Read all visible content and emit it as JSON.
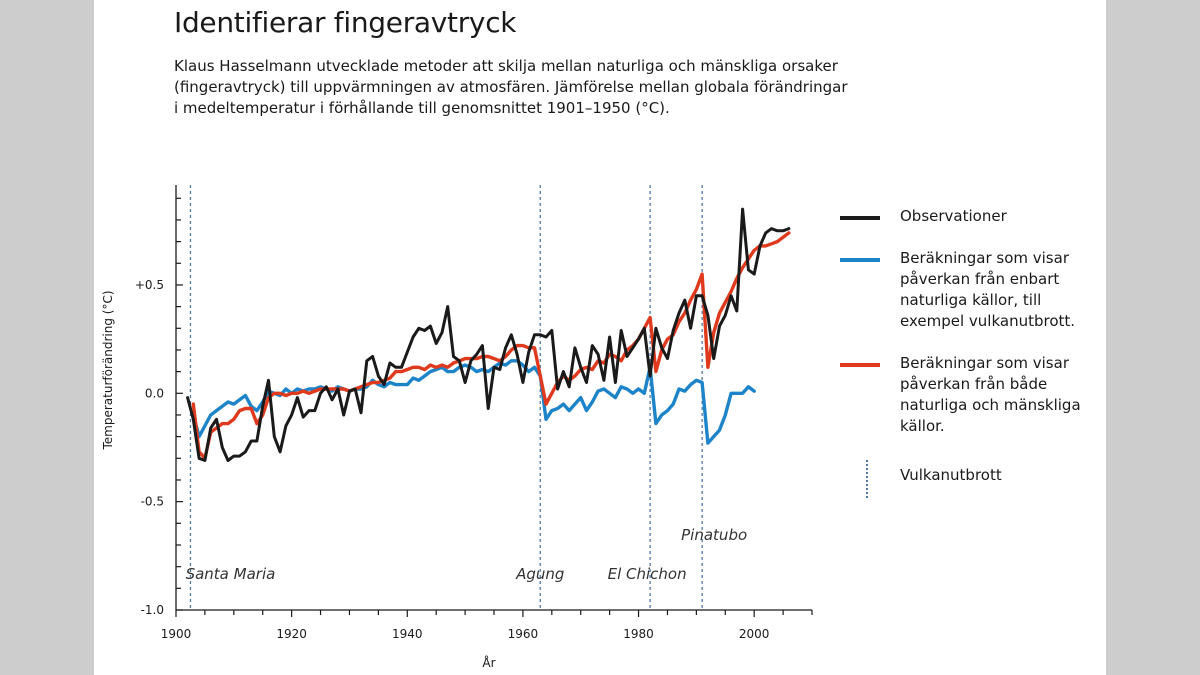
{
  "title": "Identifierar fingeravtryck",
  "subtitle": "Klaus Hasselmann utvecklade metoder att skilja mellan naturliga och mänskliga orsaker (fingeravtryck) till uppvärmningen av atmosfären. Jämförelse mellan globala förändringar i medeltemperatur i förhållande till genomsnittet 1901–1950 (°C).",
  "legend": {
    "observed": "Observationer",
    "natural": "Beräkningar som visar påverkan från enbart naturliga källor, till exempel vulkanutbrott.",
    "combined": "Beräkningar som visar påverkan från både naturliga och mänskliga källor.",
    "volcano": "Vulkanutbrott"
  },
  "chart_data": {
    "type": "line",
    "xlabel": "År",
    "ylabel": "Temperaturförändring (°C)",
    "xlim": [
      1900,
      2010
    ],
    "ylim": [
      -1.0,
      1.0
    ],
    "x_ticks": [
      1900,
      1920,
      1940,
      1960,
      1980,
      2000
    ],
    "x_tick_labels": [
      "1900",
      "1920",
      "1940",
      "1960",
      "1980",
      "2000"
    ],
    "y_ticks": [
      0.5,
      0.0,
      -0.5,
      -1.0
    ],
    "y_tick_labels": [
      "+0.5",
      "0.0",
      "-0.5",
      "-1.0"
    ],
    "legend_position": "right",
    "colors": {
      "observed": "#1a1a1a",
      "natural": "#1d84c9",
      "combined": "#e03a1e",
      "volcano": "#4f79a8"
    },
    "volcanoes": [
      {
        "name": "Santa Maria",
        "year": 1902.5
      },
      {
        "name": "Agung",
        "year": 1963
      },
      {
        "name": "El Chichon",
        "year": 1982
      },
      {
        "name": "Pinatubo",
        "year": 1991
      }
    ],
    "series": [
      {
        "name": "Observationer",
        "key": "observed",
        "x": [
          1902,
          1903,
          1904,
          1905,
          1906,
          1907,
          1908,
          1909,
          1910,
          1911,
          1912,
          1913,
          1914,
          1915,
          1916,
          1917,
          1918,
          1919,
          1920,
          1921,
          1922,
          1923,
          1924,
          1925,
          1926,
          1927,
          1928,
          1929,
          1930,
          1931,
          1932,
          1933,
          1934,
          1935,
          1936,
          1937,
          1938,
          1939,
          1940,
          1941,
          1942,
          1943,
          1944,
          1945,
          1946,
          1947,
          1948,
          1949,
          1950,
          1951,
          1952,
          1953,
          1954,
          1955,
          1956,
          1957,
          1958,
          1959,
          1960,
          1961,
          1962,
          1963,
          1964,
          1965,
          1966,
          1967,
          1968,
          1969,
          1970,
          1971,
          1972,
          1973,
          1974,
          1975,
          1976,
          1977,
          1978,
          1979,
          1980,
          1981,
          1982,
          1983,
          1984,
          1985,
          1986,
          1987,
          1988,
          1989,
          1990,
          1991,
          1992,
          1993,
          1994,
          1995,
          1996,
          1997,
          1998,
          1999,
          2000,
          2001,
          2002,
          2003,
          2004,
          2005,
          2006
        ],
        "values": [
          -0.02,
          -0.12,
          -0.3,
          -0.31,
          -0.16,
          -0.12,
          -0.25,
          -0.31,
          -0.29,
          -0.29,
          -0.27,
          -0.22,
          -0.22,
          -0.06,
          0.06,
          -0.2,
          -0.27,
          -0.15,
          -0.1,
          -0.02,
          -0.11,
          -0.08,
          -0.08,
          0.0,
          0.03,
          -0.03,
          0.02,
          -0.1,
          0.01,
          0.02,
          -0.09,
          0.15,
          0.17,
          0.08,
          0.04,
          0.14,
          0.12,
          0.12,
          0.19,
          0.26,
          0.3,
          0.29,
          0.31,
          0.23,
          0.28,
          0.4,
          0.17,
          0.15,
          0.05,
          0.15,
          0.18,
          0.22,
          -0.07,
          0.12,
          0.11,
          0.21,
          0.27,
          0.18,
          0.05,
          0.19,
          0.27,
          0.27,
          0.26,
          0.29,
          0.02,
          0.1,
          0.03,
          0.21,
          0.12,
          0.05,
          0.22,
          0.18,
          0.06,
          0.26,
          0.05,
          0.29,
          0.17,
          0.21,
          0.25,
          0.3,
          0.08,
          0.3,
          0.21,
          0.16,
          0.29,
          0.37,
          0.43,
          0.3,
          0.45,
          0.45,
          0.36,
          0.16,
          0.31,
          0.36,
          0.45,
          0.38,
          0.85,
          0.57,
          0.55,
          0.68,
          0.74,
          0.76,
          0.75,
          0.75,
          0.76
        ]
      },
      {
        "name": "Beräkningar som visar påverkan från enbart naturliga källor",
        "key": "natural",
        "x": [
          1903,
          1904,
          1905,
          1906,
          1907,
          1908,
          1909,
          1910,
          1911,
          1912,
          1913,
          1914,
          1915,
          1916,
          1917,
          1918,
          1919,
          1920,
          1921,
          1922,
          1923,
          1924,
          1925,
          1926,
          1927,
          1928,
          1929,
          1930,
          1931,
          1932,
          1933,
          1934,
          1935,
          1936,
          1937,
          1938,
          1939,
          1940,
          1941,
          1942,
          1943,
          1944,
          1945,
          1946,
          1947,
          1948,
          1949,
          1950,
          1951,
          1952,
          1953,
          1954,
          1955,
          1956,
          1957,
          1958,
          1959,
          1960,
          1961,
          1962,
          1963,
          1964,
          1965,
          1966,
          1967,
          1968,
          1969,
          1970,
          1971,
          1972,
          1973,
          1974,
          1975,
          1976,
          1977,
          1978,
          1979,
          1980,
          1981,
          1982,
          1983,
          1984,
          1985,
          1986,
          1987,
          1988,
          1989,
          1990,
          1991,
          1992,
          1993,
          1994,
          1995,
          1996,
          1997,
          1998,
          1999,
          2000
        ],
        "values": [
          -0.1,
          -0.2,
          -0.15,
          -0.1,
          -0.08,
          -0.06,
          -0.04,
          -0.05,
          -0.03,
          -0.01,
          -0.06,
          -0.08,
          -0.04,
          0.01,
          0.0,
          -0.01,
          0.02,
          0.0,
          0.02,
          0.01,
          0.02,
          0.02,
          0.03,
          0.02,
          0.01,
          0.03,
          0.02,
          0.01,
          0.02,
          0.02,
          0.03,
          0.06,
          0.04,
          0.03,
          0.05,
          0.04,
          0.04,
          0.04,
          0.07,
          0.06,
          0.08,
          0.1,
          0.11,
          0.12,
          0.1,
          0.1,
          0.12,
          0.13,
          0.12,
          0.1,
          0.11,
          0.1,
          0.12,
          0.14,
          0.13,
          0.15,
          0.15,
          0.13,
          0.1,
          0.12,
          0.08,
          -0.12,
          -0.08,
          -0.07,
          -0.05,
          -0.08,
          -0.05,
          -0.02,
          -0.08,
          -0.04,
          0.01,
          0.02,
          0.0,
          -0.02,
          0.03,
          0.02,
          0.0,
          0.02,
          0.0,
          0.12,
          -0.14,
          -0.1,
          -0.08,
          -0.05,
          0.02,
          0.01,
          0.04,
          0.06,
          0.05,
          -0.23,
          -0.2,
          -0.17,
          -0.1,
          0.0,
          0.0,
          0.0,
          0.03,
          0.01
        ]
      },
      {
        "name": "Beräkningar som visar påverkan från både naturliga och mänskliga källor",
        "key": "combined",
        "x": [
          1903,
          1904,
          1905,
          1906,
          1907,
          1908,
          1909,
          1910,
          1911,
          1912,
          1913,
          1914,
          1915,
          1916,
          1917,
          1918,
          1919,
          1920,
          1921,
          1922,
          1923,
          1924,
          1925,
          1926,
          1927,
          1928,
          1929,
          1930,
          1931,
          1932,
          1933,
          1934,
          1935,
          1936,
          1937,
          1938,
          1939,
          1940,
          1941,
          1942,
          1943,
          1944,
          1945,
          1946,
          1947,
          1948,
          1949,
          1950,
          1951,
          1952,
          1953,
          1954,
          1955,
          1956,
          1957,
          1958,
          1959,
          1960,
          1961,
          1962,
          1963,
          1964,
          1965,
          1966,
          1967,
          1968,
          1969,
          1970,
          1971,
          1972,
          1973,
          1974,
          1975,
          1976,
          1977,
          1978,
          1979,
          1980,
          1981,
          1982,
          1983,
          1984,
          1985,
          1986,
          1987,
          1988,
          1989,
          1990,
          1991,
          1992,
          1993,
          1994,
          1995,
          1996,
          1997,
          1998,
          1999,
          2000,
          2001,
          2002,
          2003,
          2004,
          2005,
          2006
        ],
        "values": [
          -0.05,
          -0.27,
          -0.3,
          -0.18,
          -0.16,
          -0.14,
          -0.14,
          -0.12,
          -0.08,
          -0.07,
          -0.07,
          -0.14,
          -0.1,
          -0.02,
          0.0,
          0.0,
          -0.01,
          0.0,
          0.0,
          0.01,
          0.0,
          0.01,
          0.02,
          0.02,
          0.02,
          0.02,
          0.02,
          0.01,
          0.02,
          0.03,
          0.04,
          0.05,
          0.05,
          0.06,
          0.07,
          0.1,
          0.1,
          0.11,
          0.12,
          0.12,
          0.11,
          0.13,
          0.12,
          0.13,
          0.12,
          0.14,
          0.15,
          0.16,
          0.16,
          0.16,
          0.17,
          0.17,
          0.16,
          0.15,
          0.17,
          0.2,
          0.22,
          0.22,
          0.21,
          0.21,
          0.08,
          -0.05,
          0.0,
          0.05,
          0.08,
          0.06,
          0.08,
          0.11,
          0.12,
          0.11,
          0.15,
          0.14,
          0.18,
          0.17,
          0.15,
          0.2,
          0.22,
          0.25,
          0.3,
          0.35,
          0.1,
          0.2,
          0.25,
          0.27,
          0.33,
          0.37,
          0.43,
          0.48,
          0.55,
          0.12,
          0.28,
          0.37,
          0.42,
          0.47,
          0.53,
          0.58,
          0.62,
          0.66,
          0.68,
          0.68,
          0.69,
          0.7,
          0.72,
          0.74
        ]
      }
    ]
  }
}
